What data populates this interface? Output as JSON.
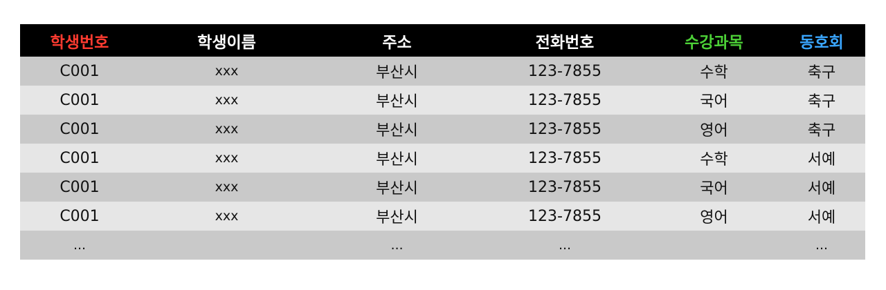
{
  "table": {
    "headers": [
      {
        "label": "학생번호",
        "color": "#ff3b30"
      },
      {
        "label": "학생이름",
        "color": "#ffffff"
      },
      {
        "label": "주소",
        "color": "#ffffff"
      },
      {
        "label": "전화번호",
        "color": "#ffffff"
      },
      {
        "label": "수강과목",
        "color": "#4cd137"
      },
      {
        "label": "동호회",
        "color": "#3aa6ff"
      }
    ],
    "rows": [
      [
        "C001",
        "xxx",
        "부산시",
        "123-7855",
        "수학",
        "축구"
      ],
      [
        "C001",
        "xxx",
        "부산시",
        "123-7855",
        "국어",
        "축구"
      ],
      [
        "C001",
        "xxx",
        "부산시",
        "123-7855",
        "영어",
        "축구"
      ],
      [
        "C001",
        "xxx",
        "부산시",
        "123-7855",
        "수학",
        "서예"
      ],
      [
        "C001",
        "xxx",
        "부산시",
        "123-7855",
        "국어",
        "서예"
      ],
      [
        "C001",
        "xxx",
        "부산시",
        "123-7855",
        "영어",
        "서예"
      ],
      [
        "...",
        "",
        "...",
        "...",
        "",
        "..."
      ]
    ]
  },
  "colors": {
    "header_bg": "#000000",
    "row_dark": "#c9c9c9",
    "row_light": "#e6e6e6"
  }
}
